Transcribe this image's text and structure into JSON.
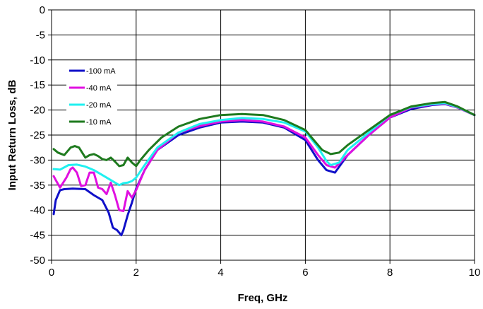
{
  "chart_data": {
    "type": "line",
    "title": "",
    "xlabel": "Freq, GHz",
    "ylabel": "Input Return Loss, dB",
    "xlim": [
      0,
      10
    ],
    "ylim": [
      -50,
      0
    ],
    "xticks": [
      0,
      2,
      4,
      6,
      8,
      10
    ],
    "yticks": [
      0,
      -5,
      -10,
      -15,
      -20,
      -25,
      -30,
      -35,
      -40,
      -45,
      -50
    ],
    "xtick_labels": [
      "0",
      "2",
      "4",
      "6",
      "8",
      "10"
    ],
    "ytick_labels": [
      "0",
      "-5",
      "-10",
      "-15",
      "-20",
      "-25",
      "-30",
      "-35",
      "-40",
      "-45",
      "-50"
    ],
    "grid": true,
    "legend_position": "upper-left",
    "series": [
      {
        "name": "-100 mA",
        "color": "#1010C8",
        "x": [
          0.05,
          0.1,
          0.2,
          0.3,
          0.5,
          0.8,
          1.0,
          1.2,
          1.35,
          1.45,
          1.55,
          1.6,
          1.65,
          1.7,
          1.8,
          1.9,
          2.0,
          2.2,
          2.5,
          3.0,
          3.5,
          4.0,
          4.5,
          5.0,
          5.5,
          6.0,
          6.3,
          6.5,
          6.7,
          7.0,
          7.5,
          8.0,
          8.5,
          9.0,
          9.3,
          9.6,
          10.0
        ],
        "y": [
          -40.8,
          -38,
          -36,
          -35.8,
          -35.7,
          -35.8,
          -37,
          -38,
          -40.5,
          -43.5,
          -44,
          -44.5,
          -45,
          -44,
          -41,
          -38.5,
          -35.7,
          -32,
          -28,
          -25,
          -23.5,
          -22.5,
          -22.3,
          -22.5,
          -23.5,
          -26,
          -30,
          -32,
          -32.5,
          -29,
          -25,
          -21.5,
          -19.8,
          -19,
          -18.8,
          -19.5,
          -21
        ]
      },
      {
        "name": "-40 mA",
        "color": "#E010E0",
        "x": [
          0.05,
          0.1,
          0.2,
          0.35,
          0.45,
          0.5,
          0.6,
          0.7,
          0.8,
          0.9,
          1.0,
          1.1,
          1.2,
          1.3,
          1.4,
          1.5,
          1.6,
          1.7,
          1.8,
          1.9,
          2.0,
          2.2,
          2.5,
          3.0,
          3.5,
          4.0,
          4.5,
          5.0,
          5.5,
          6.0,
          6.3,
          6.5,
          6.7,
          7.0,
          7.5,
          8.0,
          8.5,
          9.0,
          9.3,
          9.6,
          10.0
        ],
        "y": [
          -33.2,
          -34,
          -35.5,
          -33.5,
          -31.8,
          -31.5,
          -32.5,
          -35.2,
          -35,
          -32.5,
          -32.5,
          -35.5,
          -35.8,
          -36.8,
          -34.5,
          -37,
          -40,
          -40.2,
          -36.2,
          -37.5,
          -36,
          -32,
          -28,
          -24.5,
          -23.2,
          -22.3,
          -22,
          -22.3,
          -23.3,
          -25.5,
          -29,
          -31,
          -31.5,
          -29,
          -25,
          -21.5,
          -19.5,
          -18.9,
          -18.7,
          -19.5,
          -21
        ]
      },
      {
        "name": "-20 mA",
        "color": "#20F0F0",
        "x": [
          0.05,
          0.2,
          0.4,
          0.6,
          0.8,
          1.0,
          1.2,
          1.4,
          1.6,
          1.7,
          1.8,
          1.9,
          2.0,
          2.2,
          2.5,
          3.0,
          3.5,
          4.0,
          4.5,
          5.0,
          5.5,
          6.0,
          6.3,
          6.5,
          6.6,
          6.8,
          7.0,
          7.5,
          8.0,
          8.5,
          9.0,
          9.3,
          9.6,
          10.0
        ],
        "y": [
          -31.8,
          -31.9,
          -31,
          -30.9,
          -31.3,
          -32,
          -33,
          -34,
          -35,
          -34.6,
          -34.5,
          -34.2,
          -33.5,
          -31,
          -27.5,
          -24.5,
          -22.8,
          -22,
          -21.6,
          -21.8,
          -22.5,
          -24.3,
          -27.5,
          -30.2,
          -31,
          -30.5,
          -28,
          -24.5,
          -21,
          -19.4,
          -18.8,
          -18.6,
          -19.4,
          -21
        ]
      },
      {
        "name": "-10 mA",
        "color": "#1E7A1E",
        "x": [
          0.05,
          0.15,
          0.3,
          0.45,
          0.55,
          0.65,
          0.8,
          0.9,
          1.0,
          1.1,
          1.2,
          1.3,
          1.4,
          1.5,
          1.6,
          1.7,
          1.8,
          1.9,
          2.0,
          2.1,
          2.3,
          2.6,
          3.0,
          3.5,
          4.0,
          4.5,
          5.0,
          5.5,
          6.0,
          6.2,
          6.4,
          6.6,
          6.8,
          7.0,
          7.5,
          8.0,
          8.5,
          9.0,
          9.3,
          9.6,
          10.0
        ],
        "y": [
          -27.8,
          -28.5,
          -29,
          -27.5,
          -27.2,
          -27.5,
          -29.5,
          -29,
          -28.8,
          -29.2,
          -29.8,
          -30,
          -29.5,
          -30.3,
          -31.2,
          -31,
          -29.5,
          -30.5,
          -31.2,
          -30,
          -28,
          -25.5,
          -23.3,
          -21.8,
          -21,
          -20.8,
          -21,
          -22,
          -24,
          -26,
          -28,
          -28.8,
          -28.5,
          -27,
          -24,
          -21,
          -19.3,
          -18.6,
          -18.4,
          -19.3,
          -21
        ]
      }
    ]
  }
}
